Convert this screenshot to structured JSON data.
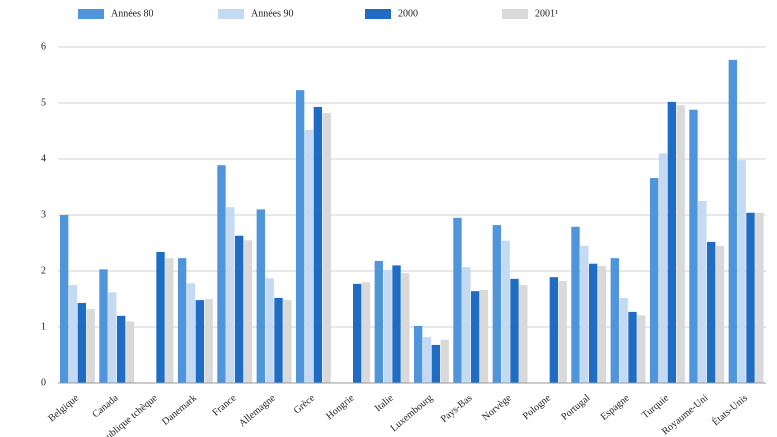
{
  "chart_data": {
    "type": "bar",
    "categories": [
      "Belgique",
      "Canada",
      "République tchèque",
      "Danemark",
      "France",
      "Allemagne",
      "Grèce",
      "Hongrie",
      "Italie",
      "Luxembourg",
      "Pays-Bas",
      "Norvège",
      "Pologne",
      "Portugal",
      "Espagne",
      "Turquie",
      "Royaume-Uni",
      "États-Unis"
    ],
    "series": [
      {
        "name": "Années 80",
        "color": "#4f95db",
        "values": [
          3.0,
          2.03,
          null,
          2.23,
          3.89,
          3.1,
          5.23,
          null,
          2.18,
          1.02,
          2.95,
          2.82,
          null,
          2.79,
          2.23,
          3.66,
          4.88,
          5.77
        ]
      },
      {
        "name": "Années 90",
        "color": "#c3daf2",
        "values": [
          1.75,
          1.62,
          null,
          1.78,
          3.14,
          1.87,
          4.52,
          null,
          2.02,
          0.82,
          2.07,
          2.54,
          null,
          2.45,
          1.52,
          4.1,
          3.25,
          3.98
        ]
      },
      {
        "name": "2000",
        "color": "#1e6cc4",
        "values": [
          1.43,
          1.2,
          2.34,
          1.48,
          2.63,
          1.52,
          4.93,
          1.77,
          2.1,
          0.68,
          1.64,
          1.86,
          1.89,
          2.13,
          1.27,
          5.02,
          2.52,
          3.04
        ]
      },
      {
        "name": "2001¹",
        "color": "#d9d9d9",
        "values": [
          1.32,
          1.1,
          2.23,
          1.5,
          2.55,
          1.48,
          4.82,
          1.8,
          1.96,
          0.77,
          1.66,
          1.75,
          1.82,
          2.09,
          1.21,
          4.96,
          2.45,
          3.04
        ]
      }
    ],
    "ylim": [
      0,
      6
    ],
    "yticks": [
      0,
      1,
      2,
      3,
      4,
      5,
      6
    ],
    "grid": true
  }
}
